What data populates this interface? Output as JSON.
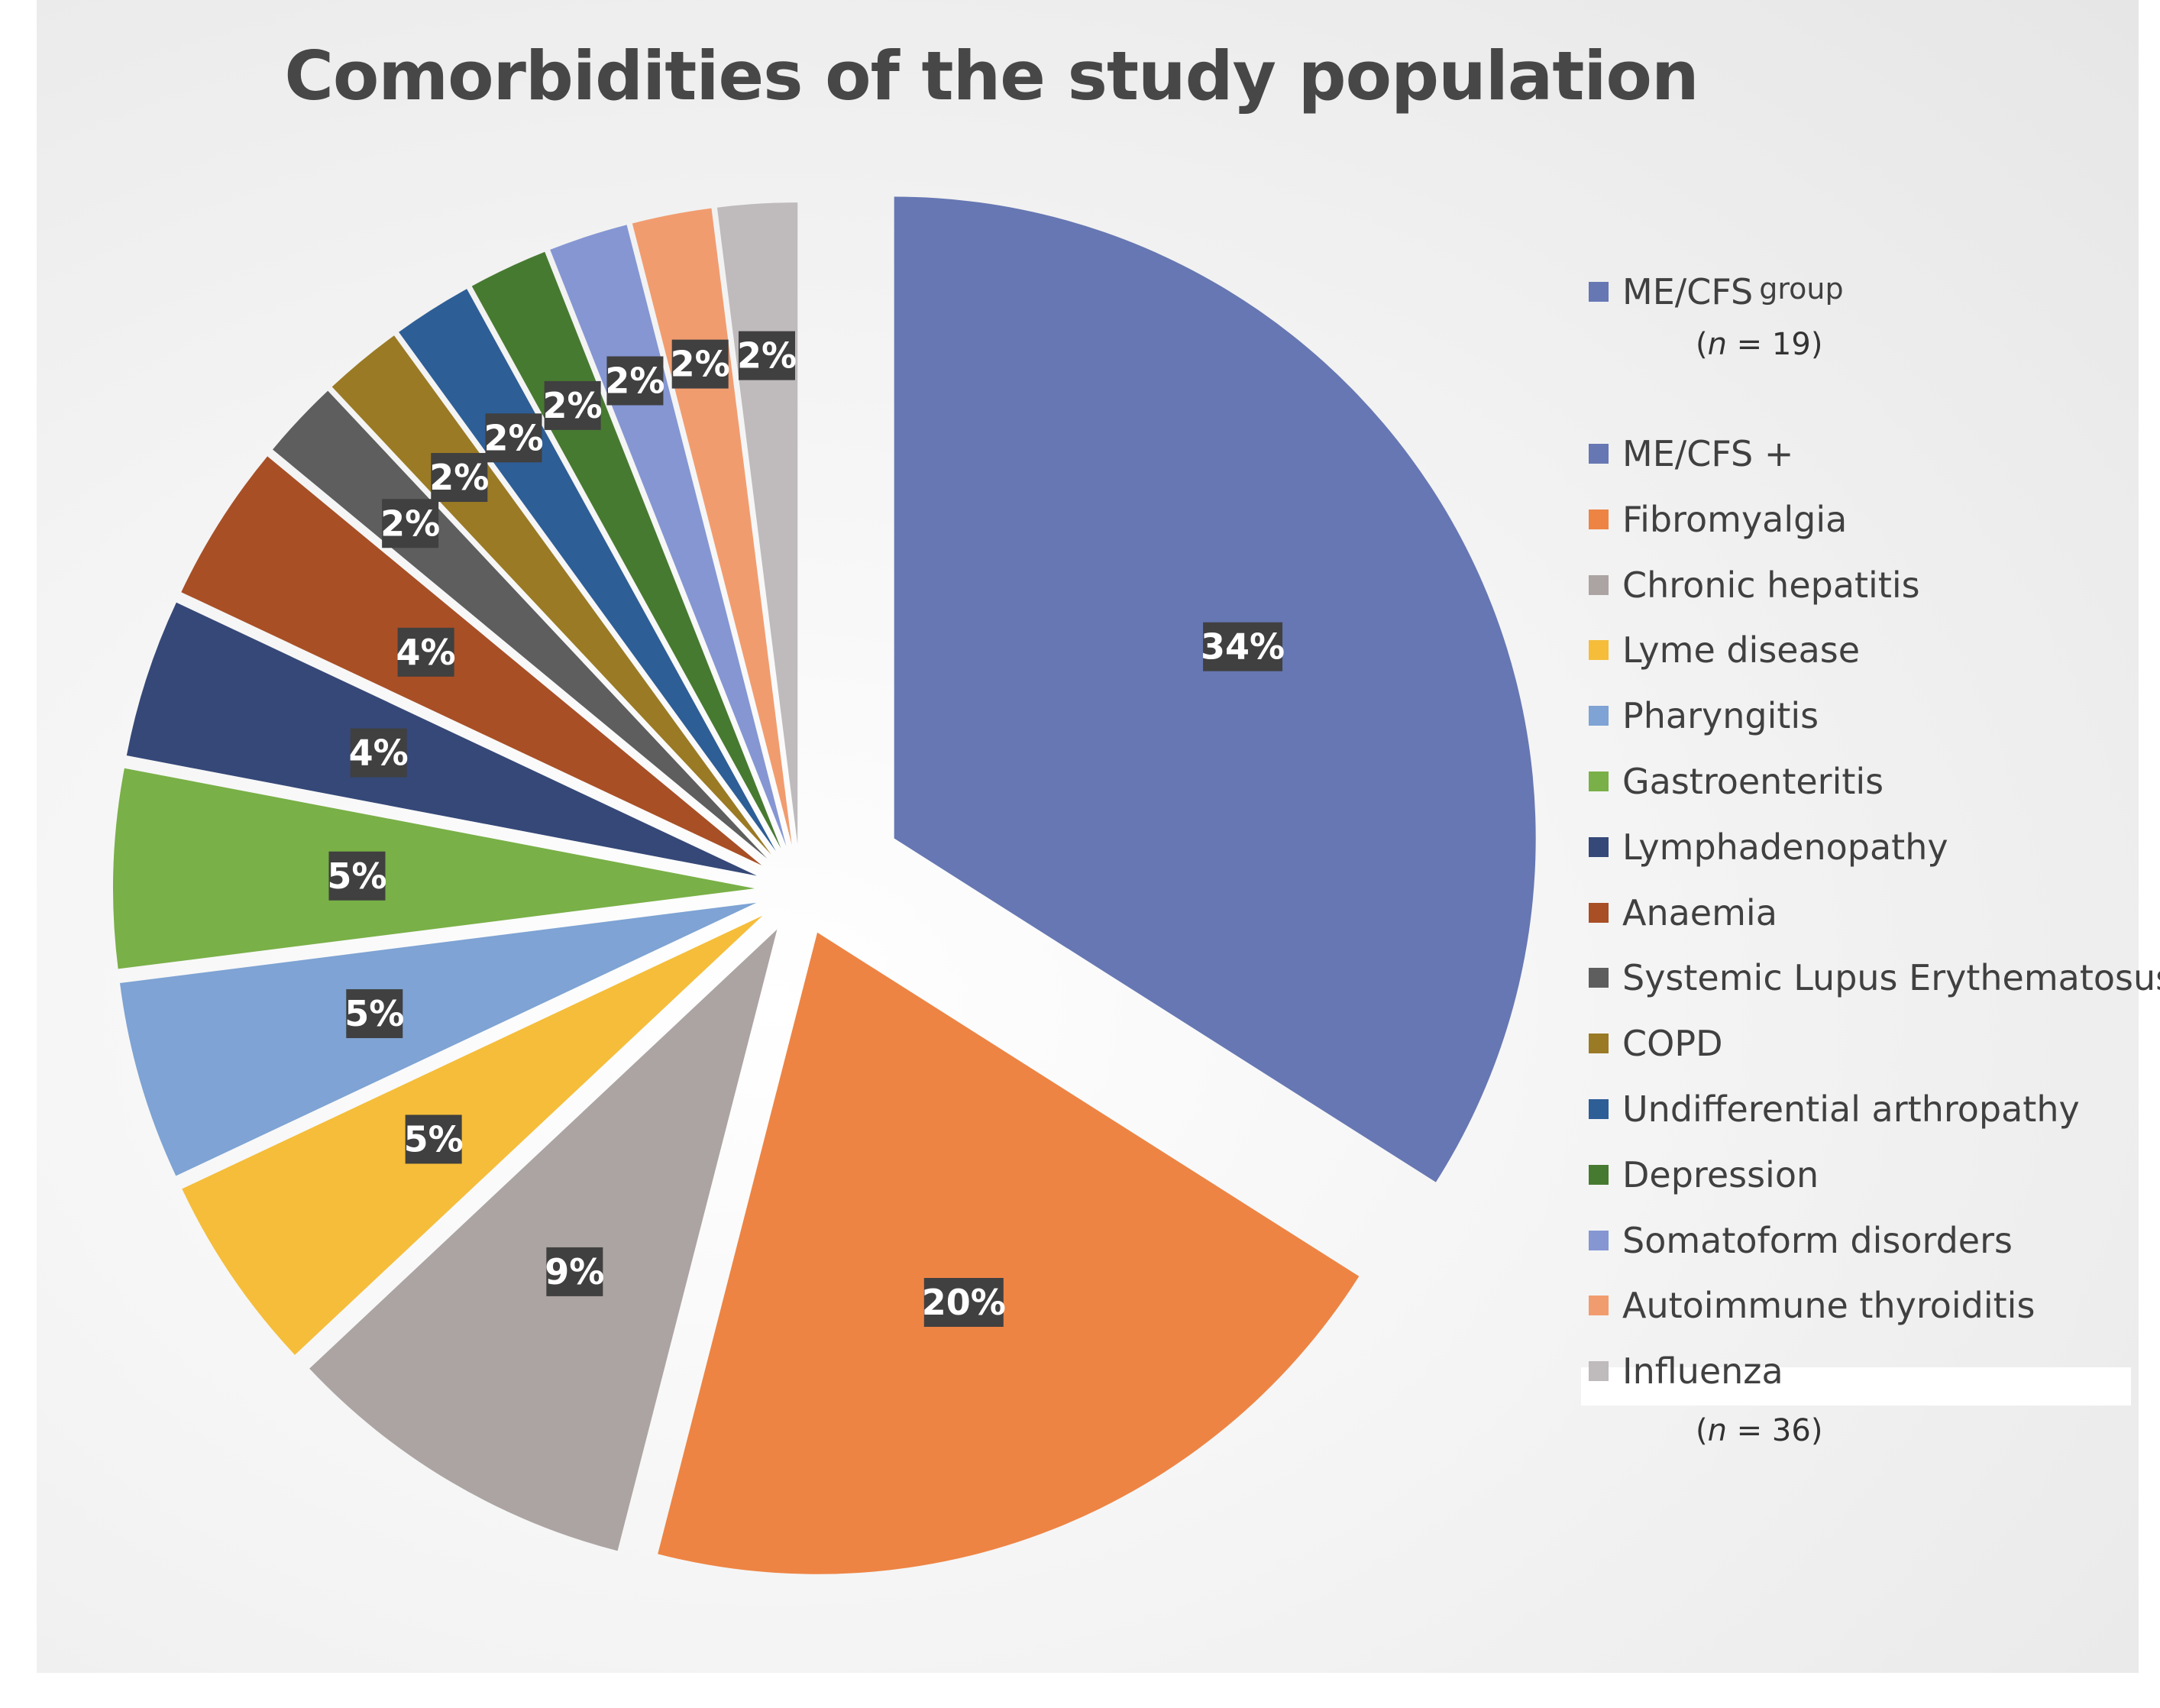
{
  "chart_data": {
    "type": "pie",
    "title": "Comorbidities of the study population",
    "slices": [
      {
        "name": "ME/CFS group",
        "value": 34,
        "label": "34%",
        "color": "#6677b3"
      },
      {
        "name": "Fibromyalgia",
        "value": 20,
        "label": "20%",
        "color": "#ed8444"
      },
      {
        "name": "Chronic hepatitis",
        "value": 9,
        "label": "9%",
        "color": "#aba4a2"
      },
      {
        "name": "Lyme disease",
        "value": 5,
        "label": "5%",
        "color": "#f5bd3a"
      },
      {
        "name": "Pharyngitis",
        "value": 5,
        "label": "5%",
        "color": "#7ea3d4"
      },
      {
        "name": "Gastroenteritis",
        "value": 5,
        "label": "5%",
        "color": "#79b047"
      },
      {
        "name": "Lymphadenopathy",
        "value": 4,
        "label": "4%",
        "color": "#354878"
      },
      {
        "name": "Anaemia",
        "value": 4,
        "label": "4%",
        "color": "#a84f26"
      },
      {
        "name": "Systemic Lupus Erythematosus",
        "value": 2,
        "label": "2%",
        "color": "#5e5e5e"
      },
      {
        "name": "COPD",
        "value": 2,
        "label": "2%",
        "color": "#9a7a25"
      },
      {
        "name": "Undifferential arthropathy",
        "value": 2,
        "label": "2%",
        "color": "#2e5e96"
      },
      {
        "name": "Depression",
        "value": 2,
        "label": "2%",
        "color": "#477a31"
      },
      {
        "name": "Somatoform disorders",
        "value": 2,
        "label": "2%",
        "color": "#8596d3"
      },
      {
        "name": "Autoimmune thyroiditis",
        "value": 2,
        "label": "2%",
        "color": "#f19c6f"
      },
      {
        "name": "Influenza",
        "value": 2,
        "label": "2%",
        "color": "#bfbabb"
      }
    ],
    "legend_position": "right"
  },
  "legend": {
    "group1": {
      "label": "ME/CFS",
      "sub": "group",
      "n_prefix": "(",
      "n_var": "n",
      "n_rest": " = 19)",
      "color": "#6677b3"
    },
    "group2_items": [
      {
        "label": "ME/CFS +",
        "color": "#6677b3"
      },
      {
        "label": "Fibromyalgia",
        "color": "#ed8444"
      },
      {
        "label": "Chronic hepatitis",
        "color": "#aba4a2"
      },
      {
        "label": "Lyme disease",
        "color": "#f5bd3a"
      },
      {
        "label": "Pharyngitis",
        "color": "#7ea3d4"
      },
      {
        "label": "Gastroenteritis",
        "color": "#79b047"
      },
      {
        "label": "Lymphadenopathy",
        "color": "#354878"
      },
      {
        "label": "Anaemia",
        "color": "#a84f26"
      },
      {
        "label": "Systemic Lupus Erythematosus",
        "color": "#5e5e5e"
      },
      {
        "label": "COPD",
        "color": "#9a7a25"
      },
      {
        "label": "Undifferential arthropathy",
        "color": "#2e5e96"
      },
      {
        "label": "Depression",
        "color": "#477a31"
      },
      {
        "label": "Somatoform disorders",
        "color": "#8596d3"
      },
      {
        "label": "Autoimmune thyroiditis",
        "color": "#f19c6f"
      },
      {
        "label": "Influenza",
        "color": "#bfbabb"
      }
    ],
    "group2_n": {
      "n_prefix": "(",
      "n_var": "n",
      "n_rest": " = 36)"
    }
  }
}
